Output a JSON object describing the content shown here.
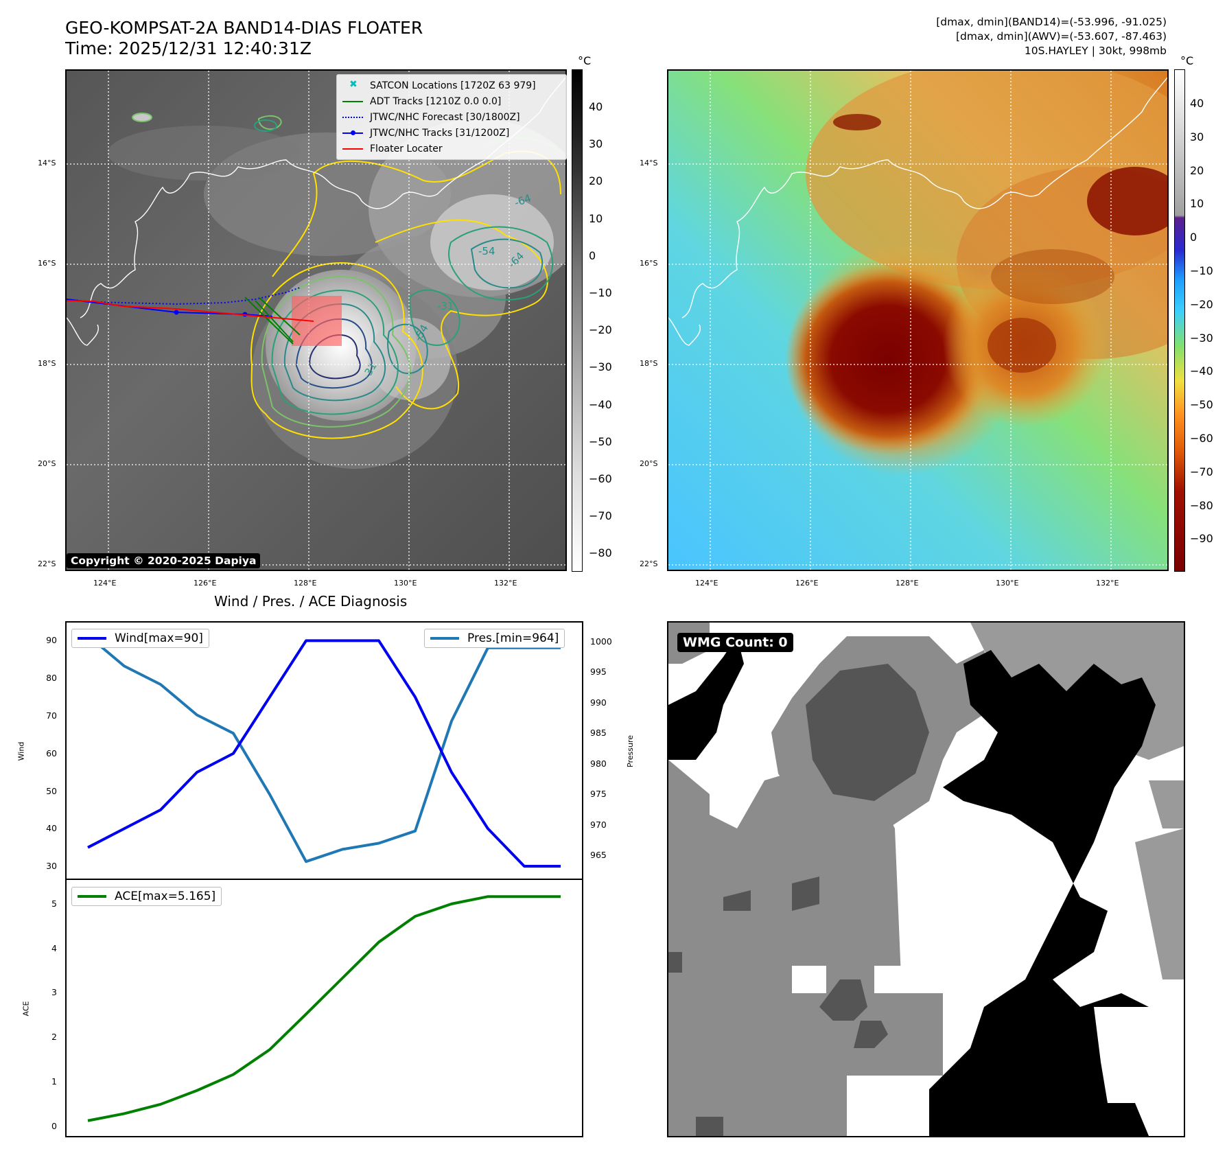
{
  "header": {
    "title_line1": "GEO-KOMPSAT-2A BAND14-DIAS FLOATER",
    "title_line2": "Time: 2025/12/31 12:40:31Z",
    "info_line1": "[dmax, dmin](BAND14)=(-53.996, -91.025)",
    "info_line2": "[dmax, dmin](AWV)=(-53.607, -87.463)",
    "info_line3": "10S.HAYLEY | 30kt, 998mb"
  },
  "map_axes": {
    "lat_ticks": [
      "14°S",
      "16°S",
      "18°S",
      "20°S",
      "22°S"
    ],
    "lon_ticks": [
      "124°E",
      "126°E",
      "128°E",
      "130°E",
      "132°E"
    ]
  },
  "left_map": {
    "colorbar_unit": "°C",
    "colorbar_ticks": [
      "40",
      "30",
      "20",
      "10",
      "0",
      "−10",
      "−20",
      "−30",
      "−40",
      "−50",
      "−60",
      "−70",
      "−80"
    ],
    "contour_labels": [
      "-64",
      "-54",
      "-64",
      "-31",
      "-54",
      "-31"
    ],
    "legend": [
      {
        "label": "SATCON Locations [1720Z 63 979]",
        "color": "#00bcbc",
        "style": "x"
      },
      {
        "label": "ADT Tracks [1210Z 0.0 0.0]",
        "color": "#008000",
        "style": "solid"
      },
      {
        "label": "JTWC/NHC Forecast [30/1800Z]",
        "color": "#0000ff",
        "style": "dotted"
      },
      {
        "label": "JTWC/NHC Tracks [31/1200Z]",
        "color": "#0000ff",
        "style": "dot-line"
      },
      {
        "label": "Floater Locater",
        "color": "#ff0000",
        "style": "solid"
      }
    ],
    "copyright": "Copyright © 2020-2025 Dapiya"
  },
  "right_map": {
    "colorbar_unit": "°C",
    "colorbar_ticks": [
      "40",
      "30",
      "20",
      "10",
      "0",
      "−10",
      "−20",
      "−30",
      "−40",
      "−50",
      "−60",
      "−70",
      "−80",
      "−90"
    ]
  },
  "diagnosis": {
    "title": "Wind / Pres. / ACE Diagnosis",
    "wind_axis_label": "Wind",
    "pressure_axis_label": "Pressure",
    "ace_axis_label": "ACE",
    "wind_legend": "Wind[max=90]",
    "pres_legend": "Pres.[min=964]",
    "ace_legend": "ACE[max=5.165]",
    "wind_ticks": [
      "90",
      "80",
      "70",
      "60",
      "50",
      "40",
      "30"
    ],
    "pres_ticks": [
      "1000",
      "995",
      "990",
      "985",
      "980",
      "975",
      "970",
      "965"
    ],
    "ace_ticks": [
      "5",
      "4",
      "3",
      "2",
      "1",
      "0"
    ],
    "colors": {
      "wind": "#0000ee",
      "pres": "#1f77b4",
      "ace": "#008000"
    }
  },
  "wmg": {
    "label": "WMG Count: 0"
  },
  "chart_data": {
    "type": "line",
    "title": "Wind / Pres. / ACE Diagnosis",
    "x": [
      0,
      1,
      2,
      3,
      4,
      5,
      6,
      7,
      8,
      9,
      10,
      11,
      12,
      13
    ],
    "series": [
      {
        "name": "Wind[max=90]",
        "axis": "left",
        "values": [
          35,
          40,
          45,
          55,
          60,
          75,
          90,
          90,
          90,
          75,
          55,
          40,
          30,
          30
        ]
      },
      {
        "name": "Pres.[min=964]",
        "axis": "right",
        "values": [
          1001,
          996,
          993,
          988,
          985,
          975,
          964,
          966,
          967,
          969,
          987,
          999,
          999,
          999
        ]
      },
      {
        "name": "ACE[max=5.165]",
        "axis": "ace",
        "values": [
          0.12,
          0.28,
          0.49,
          0.8,
          1.16,
          1.72,
          2.52,
          3.33,
          4.14,
          4.72,
          5.0,
          5.165,
          5.165,
          5.165
        ]
      }
    ],
    "ylim_wind": [
      28,
      93
    ],
    "ylim_pres": [
      962,
      1002
    ],
    "ylim_ace": [
      -0.1,
      5.4
    ]
  }
}
